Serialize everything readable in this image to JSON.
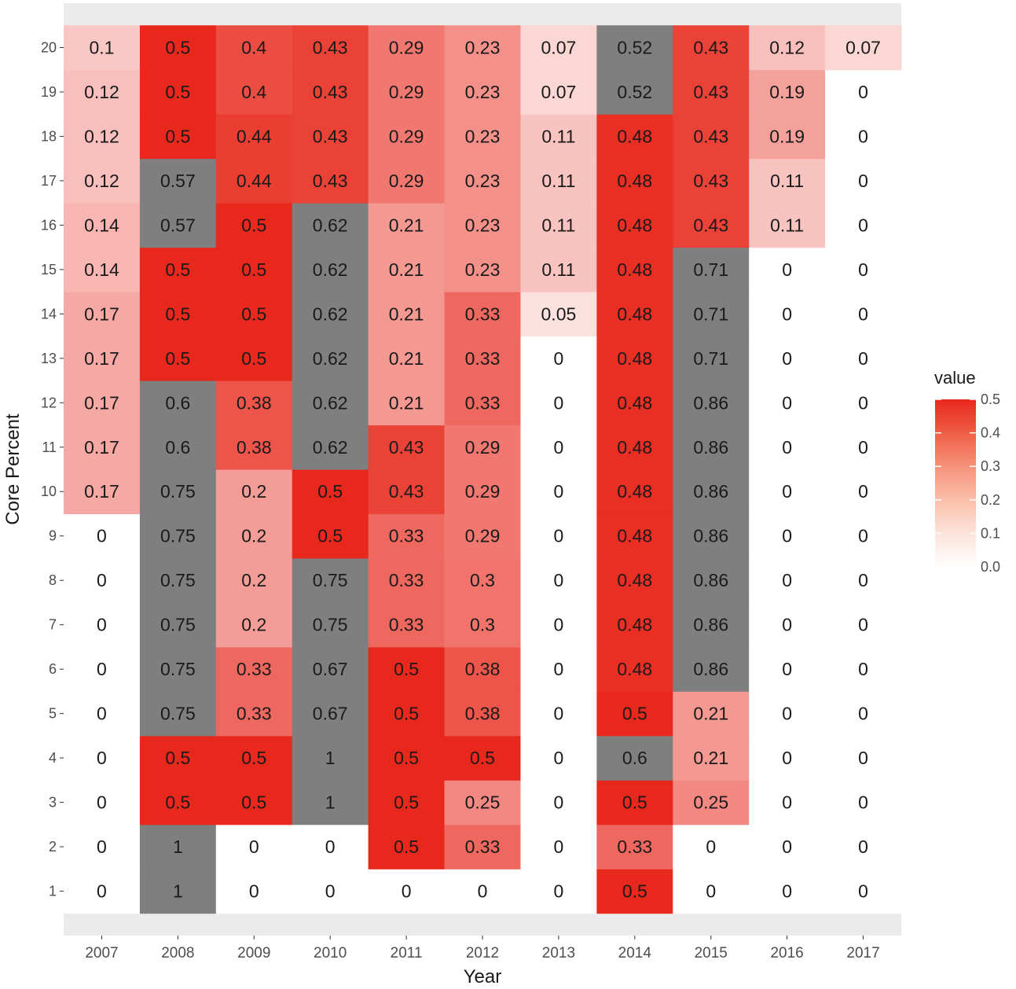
{
  "chart_data": {
    "type": "heatmap",
    "xlabel": "Year",
    "ylabel": "Core Percent",
    "x": [
      "2007",
      "2008",
      "2009",
      "2010",
      "2011",
      "2012",
      "2013",
      "2014",
      "2015",
      "2016",
      "2017"
    ],
    "y": [
      1,
      2,
      3,
      4,
      5,
      6,
      7,
      8,
      9,
      10,
      11,
      12,
      13,
      14,
      15,
      16,
      17,
      18,
      19,
      20
    ],
    "values": [
      [
        0,
        1,
        0,
        0,
        0,
        0,
        0,
        0.5,
        0,
        0,
        0
      ],
      [
        0,
        1,
        0,
        0,
        0.5,
        0.33,
        0,
        0.33,
        0,
        0,
        0
      ],
      [
        0,
        0.5,
        0.5,
        1,
        0.5,
        0.25,
        0,
        0.5,
        0.25,
        0,
        0
      ],
      [
        0,
        0.5,
        0.5,
        1,
        0.5,
        0.5,
        0,
        0.6,
        0.21,
        0,
        0
      ],
      [
        0,
        0.75,
        0.33,
        0.67,
        0.5,
        0.38,
        0,
        0.5,
        0.21,
        0,
        0
      ],
      [
        0,
        0.75,
        0.33,
        0.67,
        0.5,
        0.38,
        0,
        0.48,
        0.86,
        0,
        0
      ],
      [
        0,
        0.75,
        0.2,
        0.75,
        0.33,
        0.3,
        0,
        0.48,
        0.86,
        0,
        0
      ],
      [
        0,
        0.75,
        0.2,
        0.75,
        0.33,
        0.3,
        0,
        0.48,
        0.86,
        0,
        0
      ],
      [
        0,
        0.75,
        0.2,
        0.5,
        0.33,
        0.29,
        0,
        0.48,
        0.86,
        0,
        0
      ],
      [
        0.17,
        0.75,
        0.2,
        0.5,
        0.43,
        0.29,
        0,
        0.48,
        0.86,
        0,
        0
      ],
      [
        0.17,
        0.6,
        0.38,
        0.62,
        0.43,
        0.29,
        0,
        0.48,
        0.86,
        0,
        0
      ],
      [
        0.17,
        0.6,
        0.38,
        0.62,
        0.21,
        0.33,
        0,
        0.48,
        0.86,
        0,
        0
      ],
      [
        0.17,
        0.5,
        0.5,
        0.62,
        0.21,
        0.33,
        0,
        0.48,
        0.71,
        0,
        0
      ],
      [
        0.17,
        0.5,
        0.5,
        0.62,
        0.21,
        0.33,
        0.05,
        0.48,
        0.71,
        0,
        0
      ],
      [
        0.14,
        0.5,
        0.5,
        0.62,
        0.21,
        0.23,
        0.11,
        0.48,
        0.71,
        0,
        0
      ],
      [
        0.14,
        0.57,
        0.5,
        0.62,
        0.21,
        0.23,
        0.11,
        0.48,
        0.43,
        0.11,
        0
      ],
      [
        0.12,
        0.57,
        0.44,
        0.43,
        0.29,
        0.23,
        0.11,
        0.48,
        0.43,
        0.11,
        0
      ],
      [
        0.12,
        0.5,
        0.44,
        0.43,
        0.29,
        0.23,
        0.11,
        0.48,
        0.43,
        0.19,
        0
      ],
      [
        0.12,
        0.5,
        0.4,
        0.43,
        0.29,
        0.23,
        0.07,
        0.52,
        0.43,
        0.19,
        0
      ],
      [
        0.1,
        0.5,
        0.4,
        0.43,
        0.29,
        0.23,
        0.07,
        0.52,
        0.43,
        0.12,
        0.07
      ]
    ],
    "legend": {
      "title": "value",
      "ticks": [
        "0.5",
        "0.4",
        "0.3",
        "0.2",
        "0.1",
        "0.0"
      ],
      "limits": [
        0,
        0.5
      ],
      "placement": "right"
    },
    "colors": {
      "low": "#ffffff",
      "high": "#e8281c",
      "na": "#7f7f7f",
      "panel_bg": "#ebebeb",
      "text": "#1a1a1a",
      "axis_text": "#4d4d4d"
    }
  }
}
